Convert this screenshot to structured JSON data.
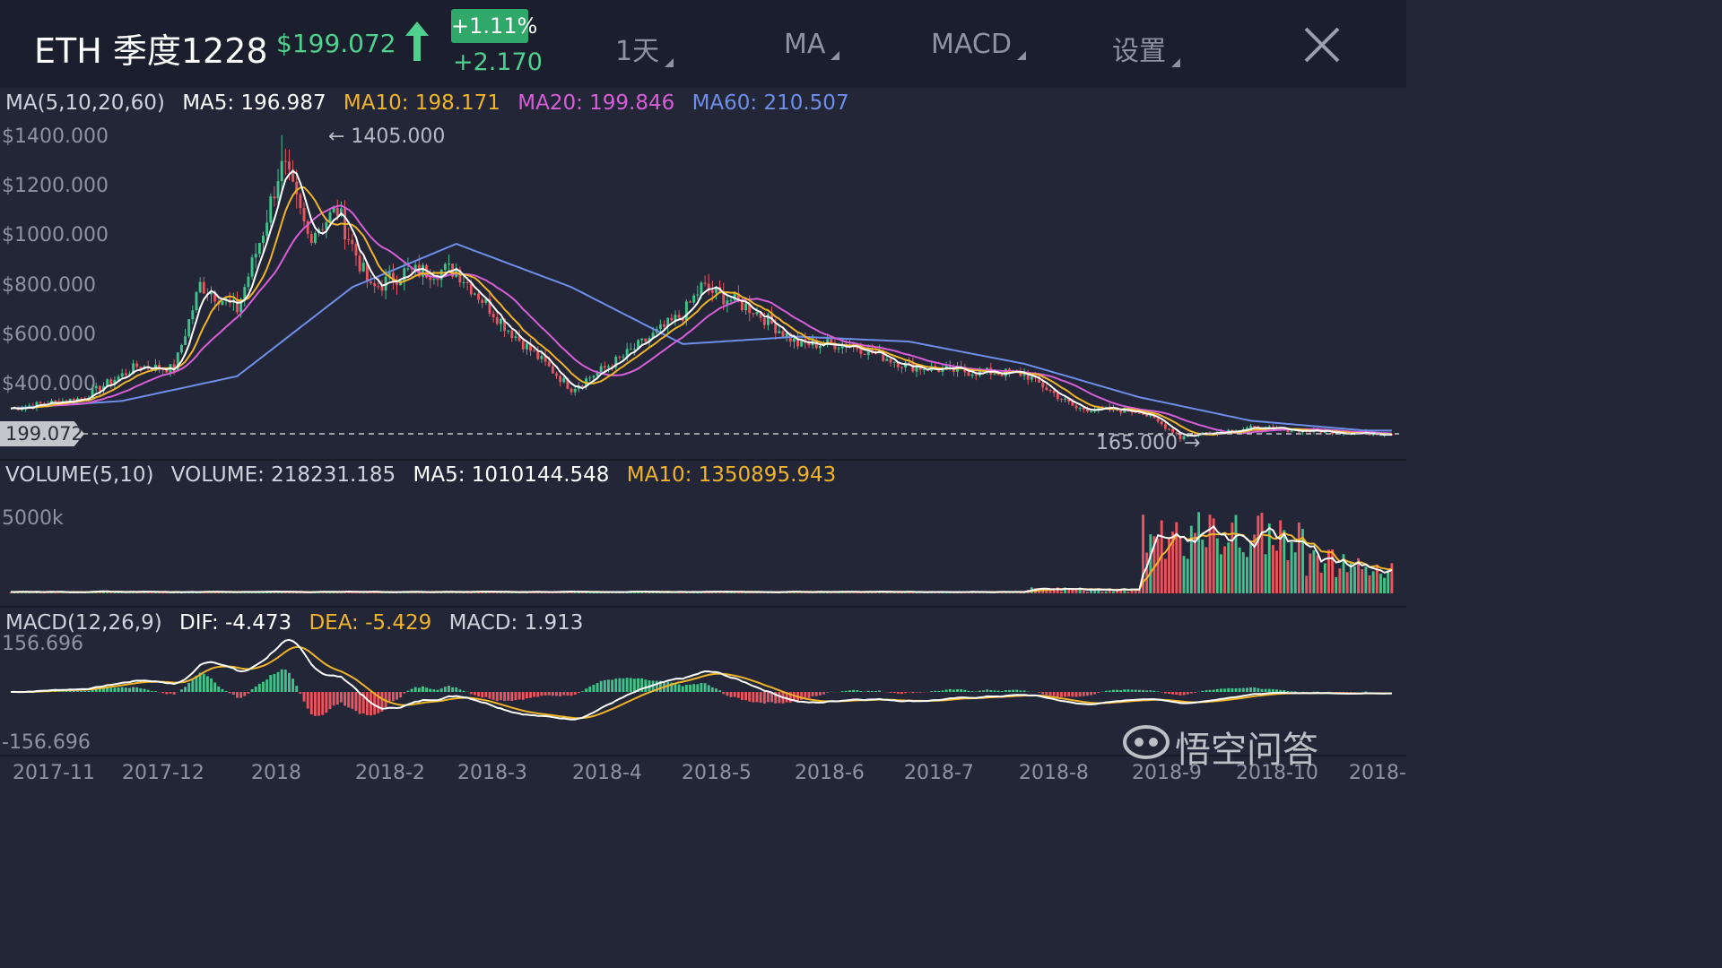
{
  "header": {
    "symbol": "ETH 季度1228",
    "price": "$199.072",
    "change_pct": "+1.11%",
    "change_abs": "+2.170",
    "menu": [
      {
        "label": "1天"
      },
      {
        "label": "MA"
      },
      {
        "label": "MACD"
      },
      {
        "label": "设置"
      }
    ]
  },
  "ma_legend": {
    "label": "MA(5,10,20,60)",
    "ma5": "MA5: 196.987",
    "ma10": "MA10: 198.171",
    "ma20": "MA20: 199.846",
    "ma60": "MA60: 210.507"
  },
  "volume_legend": {
    "label": "VOLUME(5,10)",
    "volume": "VOLUME: 218231.185",
    "ma5": "MA5: 1010144.548",
    "ma10": "MA10: 1350895.943"
  },
  "macd_legend": {
    "label": "MACD(12,26,9)",
    "dif": "DIF: -4.473",
    "dea": "DEA: -5.429",
    "macd": "MACD: 1.913"
  },
  "annotations": {
    "high": "← 1405.000",
    "low": "165.000 →",
    "last_price": "199.072"
  },
  "volume_axis_label": "5000k",
  "macd_axis": {
    "top": "156.696",
    "bottom": "-156.696"
  },
  "watermark": "悟空问答",
  "colors": {
    "up": "#3fc38a",
    "down": "#e8555e",
    "ma5": "#ffffff",
    "ma10": "#f0b429",
    "ma20": "#d65fd8",
    "ma60": "#6e8ee8",
    "accent": "#4fd08e"
  },
  "chart_data": {
    "type": "candlestick",
    "price_axis": {
      "ticks": [
        "$1400.000",
        "$1200.000",
        "$1000.000",
        "$800.000",
        "$600.000",
        "$400.000"
      ],
      "range": [
        200,
        1400
      ]
    },
    "x_ticks": [
      "2017-11",
      "2017-12",
      "2018",
      "2018-2",
      "2018-3",
      "2018-4",
      "2018-5",
      "2018-6",
      "2018-7",
      "2018-8",
      "2018-9",
      "2018-10",
      "2018-"
    ],
    "ma60_path_values": [
      [
        "2017-11-01",
        300
      ],
      [
        "2017-12-01",
        330
      ],
      [
        "2018-01-01",
        430
      ],
      [
        "2018-02-01",
        790
      ],
      [
        "2018-03-01",
        965
      ],
      [
        "2018-04-01",
        790
      ],
      [
        "2018-05-01",
        560
      ],
      [
        "2018-06-01",
        590
      ],
      [
        "2018-07-01",
        570
      ],
      [
        "2018-08-01",
        480
      ],
      [
        "2018-09-01",
        345
      ],
      [
        "2018-10-01",
        250
      ],
      [
        "2018-11-01",
        210
      ]
    ],
    "close_series": [
      [
        "2017-11-01",
        300
      ],
      [
        "2017-11-20",
        340
      ],
      [
        "2017-12-05",
        470
      ],
      [
        "2017-12-15",
        460
      ],
      [
        "2017-12-22",
        800
      ],
      [
        "2018-01-01",
        700
      ],
      [
        "2018-01-08",
        1020
      ],
      [
        "2018-01-13",
        1300
      ],
      [
        "2018-01-20",
        1000
      ],
      [
        "2018-01-28",
        1100
      ],
      [
        "2018-02-06",
        780
      ],
      [
        "2018-02-15",
        850
      ],
      [
        "2018-03-01",
        860
      ],
      [
        "2018-03-15",
        620
      ],
      [
        "2018-04-01",
        380
      ],
      [
        "2018-04-15",
        510
      ],
      [
        "2018-05-01",
        680
      ],
      [
        "2018-05-06",
        790
      ],
      [
        "2018-05-20",
        700
      ],
      [
        "2018-06-01",
        560
      ],
      [
        "2018-06-15",
        560
      ],
      [
        "2018-07-01",
        470
      ],
      [
        "2018-07-15",
        450
      ],
      [
        "2018-08-01",
        440
      ],
      [
        "2018-08-15",
        300
      ],
      [
        "2018-09-01",
        290
      ],
      [
        "2018-09-12",
        190
      ],
      [
        "2018-10-01",
        220
      ],
      [
        "2018-11-01",
        199
      ]
    ]
  }
}
